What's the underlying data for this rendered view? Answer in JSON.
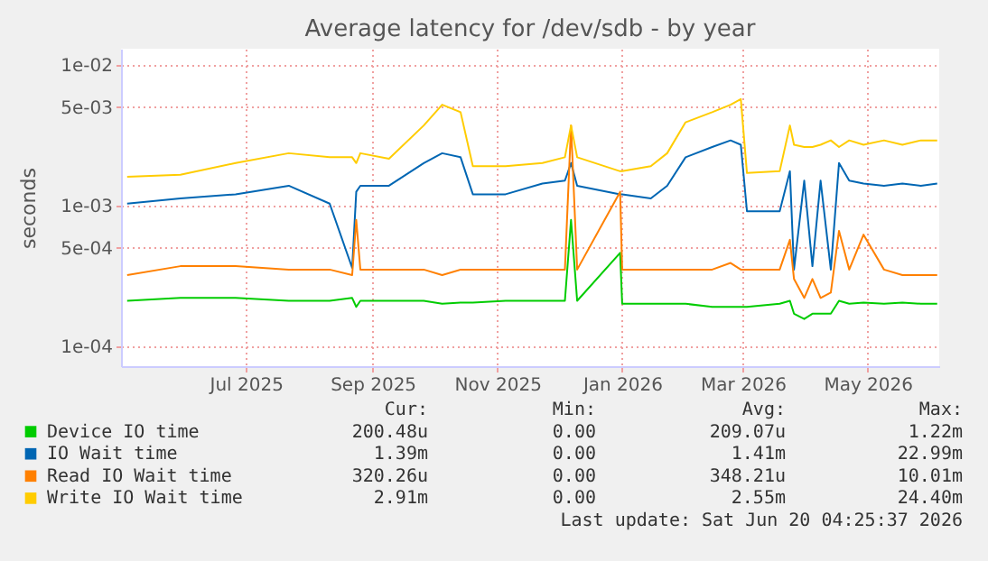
{
  "chart_data": {
    "type": "line",
    "title": "Average latency for /dev/sdb - by year",
    "ylabel": "seconds",
    "log": "y",
    "grid": true,
    "legend": "bottom",
    "marker": "none",
    "line_style": "solid",
    "x": [
      "2025-05-19",
      "2025-06-14",
      "2025-07-11",
      "2025-08-06",
      "2025-08-26",
      "2025-09-06",
      "2025-09-08",
      "2025-09-10",
      "2025-09-24",
      "2025-10-11",
      "2025-10-20",
      "2025-10-29",
      "2025-11-04",
      "2025-11-20",
      "2025-12-08",
      "2025-12-19",
      "2025-12-22",
      "2025-12-25",
      "2026-01-15",
      "2026-01-16",
      "2026-01-30",
      "2026-02-07",
      "2026-02-16",
      "2026-03-01",
      "2026-03-10",
      "2026-03-15",
      "2026-03-18",
      "2026-04-03",
      "2026-04-08",
      "2026-04-10",
      "2026-04-15",
      "2026-04-19",
      "2026-04-23",
      "2026-04-28",
      "2026-05-02",
      "2026-05-07",
      "2026-05-14",
      "2026-05-24",
      "2026-06-02",
      "2026-06-11",
      "2026-06-19"
    ],
    "xlim": [
      "2025-05-16",
      "2026-06-20"
    ],
    "xticks": [
      {
        "value": "2025-07-16",
        "label": "Jul 2025"
      },
      {
        "value": "2025-09-16",
        "label": "Sep 2025"
      },
      {
        "value": "2025-11-16",
        "label": "Nov 2025"
      },
      {
        "value": "2026-01-16",
        "label": "Jan 2026"
      },
      {
        "value": "2026-03-16",
        "label": "Mar 2026"
      },
      {
        "value": "2026-05-16",
        "label": "May 2026"
      }
    ],
    "ylim": [
      7.2e-05,
      0.013
    ],
    "yticks": [
      {
        "value": 0.01,
        "label": "1e-02"
      },
      {
        "value": 0.005,
        "label": "5e-03"
      },
      {
        "value": 0.001,
        "label": "1e-03"
      },
      {
        "value": 0.0005,
        "label": "5e-04"
      },
      {
        "value": 0.0001,
        "label": "1e-04"
      }
    ],
    "series": [
      {
        "name": "Device IO time",
        "color": "#00cc00",
        "values": [
          0.00021,
          0.00022,
          0.00022,
          0.00021,
          0.00021,
          0.00022,
          0.00019,
          0.00021,
          0.00021,
          0.00021,
          0.0002,
          0.000204,
          0.000204,
          0.00021,
          0.00021,
          0.00021,
          0.00079,
          0.00021,
          0.00046,
          0.0002,
          0.0002,
          0.0002,
          0.0002,
          0.00019,
          0.00019,
          0.00019,
          0.00019,
          0.0002,
          0.00021,
          0.00017,
          0.000156,
          0.00017,
          0.00017,
          0.00017,
          0.00021,
          0.0002,
          0.000204,
          0.0002,
          0.000204,
          0.0002,
          0.0002
        ]
      },
      {
        "name": "IO Wait time",
        "color": "#0066b3",
        "values": [
          0.00103,
          0.00112,
          0.0012,
          0.00138,
          0.00103,
          0.00036,
          0.00125,
          0.00138,
          0.00138,
          0.002,
          0.00235,
          0.0022,
          0.0012,
          0.0012,
          0.00143,
          0.0015,
          0.002,
          0.00138,
          0.0012,
          0.0012,
          0.00112,
          0.00138,
          0.0022,
          0.0026,
          0.0029,
          0.0027,
          0.00091,
          0.00091,
          0.00175,
          0.00035,
          0.0015,
          0.00037,
          0.0015,
          0.00035,
          0.002,
          0.0015,
          0.00143,
          0.00138,
          0.00143,
          0.00138,
          0.00143
        ]
      },
      {
        "name": "Read IO Wait time",
        "color": "#ff8000",
        "values": [
          0.00032,
          0.00037,
          0.00037,
          0.00035,
          0.00035,
          0.00032,
          0.00079,
          0.00035,
          0.00035,
          0.00035,
          0.00032,
          0.00035,
          0.00035,
          0.00035,
          0.00035,
          0.00035,
          0.0037,
          0.00035,
          0.00125,
          0.00035,
          0.00035,
          0.00035,
          0.00035,
          0.00035,
          0.00039,
          0.00035,
          0.00035,
          0.00035,
          0.00057,
          0.0003,
          0.00022,
          0.0003,
          0.00022,
          0.00024,
          0.00066,
          0.00035,
          0.00062,
          0.00035,
          0.00032,
          0.00032,
          0.00032
        ]
      },
      {
        "name": "Write IO Wait time",
        "color": "#ffcc00",
        "values": [
          0.0016,
          0.00165,
          0.002,
          0.00235,
          0.0022,
          0.0022,
          0.002,
          0.00235,
          0.00215,
          0.0037,
          0.0052,
          0.0046,
          0.0019,
          0.0019,
          0.002,
          0.0022,
          0.0037,
          0.0022,
          0.00175,
          0.00175,
          0.0019,
          0.00235,
          0.0039,
          0.0046,
          0.0052,
          0.0057,
          0.0017,
          0.00175,
          0.0037,
          0.0027,
          0.0026,
          0.0026,
          0.0027,
          0.0029,
          0.0026,
          0.0029,
          0.0027,
          0.0029,
          0.0027,
          0.0029,
          0.0029
        ]
      }
    ],
    "annotations": [
      "Cur:",
      "Min:",
      "Avg:",
      "Max:",
      "200.48u",
      "0.00",
      "209.07u",
      "1.22m",
      "1.39m",
      "0.00",
      "1.41m",
      "22.99m",
      "320.26u",
      "0.00",
      "348.21u",
      "10.01m",
      "2.91m",
      "0.00",
      "2.55m",
      "24.40m",
      "Last update: Sat Jun 20 04:25:37 2026"
    ]
  }
}
